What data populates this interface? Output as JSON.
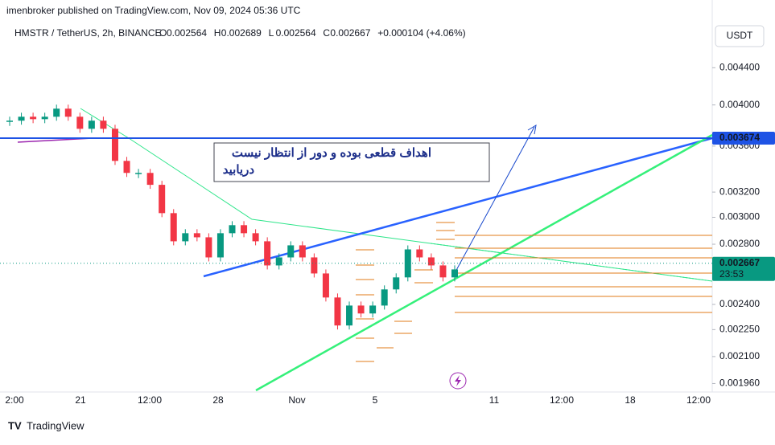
{
  "header": {
    "publisher": "imenbroker published on TradingView.com, Nov 09, 2024 05:36 UTC",
    "symbol": "HMSTR / TetherUS, 2h, BINANCE",
    "ohlc": [
      {
        "key": "O",
        "value": "0.002564"
      },
      {
        "key": "H",
        "value": "0.002689"
      },
      {
        "key": "L",
        "value": "0.002564"
      },
      {
        "key": "C",
        "value": "0.002667"
      }
    ],
    "change": "+0.000104 (+4.06%)"
  },
  "currency_button": "USDT",
  "chart_data": {
    "type": "candlestick",
    "closes": [
      0.003842,
      0.003881,
      0.003857,
      0.003881,
      0.003962,
      0.003881,
      0.003763,
      0.003842,
      0.003763,
      0.003466,
      0.003361,
      0.003361,
      0.00326,
      0.003032,
      0.002821,
      0.00288,
      0.00285,
      0.002707,
      0.00288,
      0.00294,
      0.00288,
      0.002821,
      0.002652,
      0.002707,
      0.002792,
      0.002707,
      0.002598,
      0.002443,
      0.002274,
      0.002393,
      0.002345,
      0.002393,
      0.002494,
      0.002572,
      0.002763,
      0.002707,
      0.002652,
      0.002572,
      0.002625
    ],
    "log_scale": true,
    "ylim": [
      0.00191,
      0.00492
    ],
    "yticks": [
      {
        "value": 0.0044,
        "label": "0.004400"
      },
      {
        "value": 0.004,
        "label": "0.004000"
      },
      {
        "value": 0.0036,
        "label": "0.003600"
      },
      {
        "value": 0.0032,
        "label": "0.003200"
      },
      {
        "value": 0.003,
        "label": "0.003000"
      },
      {
        "value": 0.0028,
        "label": "0.002800"
      },
      {
        "value": 0.0024,
        "label": "0.002400"
      },
      {
        "value": 0.00225,
        "label": "0.002250"
      },
      {
        "value": 0.0021,
        "label": "0.002100"
      },
      {
        "value": 0.00196,
        "label": "0.001960"
      }
    ],
    "price_markers": [
      {
        "value": 0.003674,
        "label": "0.003674",
        "color": "#1e53e5"
      },
      {
        "value": 0.002667,
        "label": "0.002667",
        "countdown": "23:53",
        "color": "#089981"
      }
    ],
    "time_labels": [
      "2:00",
      "21",
      "12:00",
      "28",
      "Nov",
      "5",
      "11",
      "12:00",
      "18",
      "12:00"
    ],
    "annotation": [
      "اهداف قطعی بوده و دور از انتظار نیست",
      "دریابید"
    ]
  },
  "footer": "TradingView"
}
